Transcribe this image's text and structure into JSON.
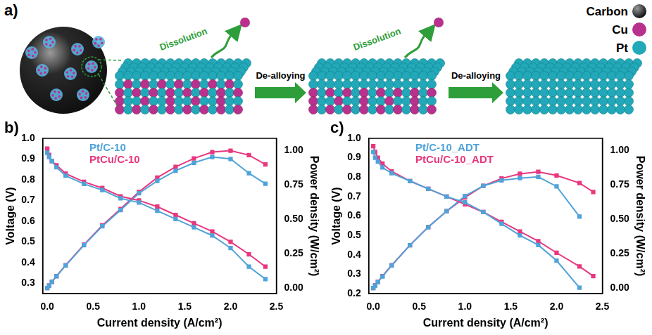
{
  "diagram": {
    "panel_label": "a)",
    "legend": [
      {
        "label": "Carbon",
        "color": "#111111"
      },
      {
        "label": "Cu",
        "color": "#b8318d"
      },
      {
        "label": "Pt",
        "color": "#22a8b8"
      }
    ],
    "steps": [
      {
        "process": "De-alloying",
        "release": "Dissolution"
      },
      {
        "process": "De-alloying",
        "release": "Dissolution"
      }
    ]
  },
  "chart_data": [
    {
      "type": "line",
      "panel_label": "b)",
      "x_label": "Current density (A/cm²)",
      "y_label": "Voltage (V)",
      "y2_label": "Power density (W/cm²)",
      "x": [
        0,
        0.02,
        0.05,
        0.1,
        0.2,
        0.4,
        0.6,
        0.8,
        1.0,
        1.2,
        1.4,
        1.6,
        1.8,
        2.0,
        2.2,
        2.38
      ],
      "xlim": [
        -0.05,
        2.5
      ],
      "xticks": [
        {
          "value": 0,
          "label": "0.0"
        },
        0.5,
        {
          "value": 1,
          "label": "1.0"
        },
        1.5,
        {
          "value": 2,
          "label": "2.0"
        },
        2.5
      ],
      "ylim": [
        0.25,
        1.0
      ],
      "yticks": [
        0.3,
        0.4,
        0.5,
        0.6,
        0.7,
        0.8,
        0.9,
        {
          "value": 1,
          "label": "1.0"
        }
      ],
      "y2lim": [
        -0.04,
        1.09
      ],
      "y2ticks": [
        {
          "value": 0,
          "label": "0.00"
        },
        {
          "value": 0.25,
          "label": "0.25"
        },
        {
          "value": 0.5,
          "label": "0.50"
        },
        {
          "value": 0.75,
          "label": "0.75"
        },
        {
          "value": 1,
          "label": "1.00"
        }
      ],
      "grid": false,
      "legend": "upper left",
      "series": [
        {
          "name": "Pt/C-10",
          "color": "#4fa3d9",
          "marker": "square",
          "axis": "y",
          "values": [
            0.93,
            0.91,
            0.89,
            0.86,
            0.82,
            0.78,
            0.75,
            0.71,
            0.69,
            0.65,
            0.61,
            0.57,
            0.53,
            0.47,
            0.38,
            0.32
          ]
        },
        {
          "name": "PtCu/C-10",
          "color": "#e8377f",
          "marker": "square",
          "axis": "y",
          "values": [
            0.95,
            0.92,
            0.89,
            0.87,
            0.83,
            0.79,
            0.76,
            0.72,
            0.7,
            0.67,
            0.63,
            0.59,
            0.55,
            0.5,
            0.44,
            0.38
          ]
        },
        {
          "name": "Pt/C-10",
          "color": "#4fa3d9",
          "marker": "square",
          "axis": "y2",
          "values": [
            0,
            0.018,
            0.045,
            0.086,
            0.164,
            0.312,
            0.45,
            0.568,
            0.69,
            0.78,
            0.854,
            0.912,
            0.954,
            0.94,
            0.836,
            0.76
          ]
        },
        {
          "name": "PtCu/C-10",
          "color": "#e8377f",
          "marker": "square",
          "axis": "y2",
          "values": [
            0,
            0.018,
            0.045,
            0.087,
            0.166,
            0.316,
            0.456,
            0.576,
            0.7,
            0.804,
            0.882,
            0.944,
            0.99,
            1.0,
            0.968,
            0.9
          ]
        }
      ]
    },
    {
      "type": "line",
      "panel_label": "c)",
      "x_label": "Current density (A/cm²)",
      "y_label": "Voltage (V)",
      "y2_label": "Power density (W/cm²)",
      "x": [
        0,
        0.02,
        0.05,
        0.1,
        0.2,
        0.4,
        0.6,
        0.8,
        1.0,
        1.2,
        1.4,
        1.6,
        1.8,
        2.0,
        2.25,
        2.4
      ],
      "xlim": [
        -0.05,
        2.5
      ],
      "xticks": [
        {
          "value": 0,
          "label": "0.0"
        },
        0.5,
        {
          "value": 1,
          "label": "1.0"
        },
        1.5,
        {
          "value": 2,
          "label": "2.0"
        },
        2.5
      ],
      "ylim": [
        0.2,
        1.0
      ],
      "yticks": [
        0.2,
        0.3,
        0.4,
        0.5,
        0.6,
        0.7,
        0.8,
        0.9,
        {
          "value": 1,
          "label": "1.0"
        }
      ],
      "y2lim": [
        -0.04,
        1.09
      ],
      "y2ticks": [
        {
          "value": 0,
          "label": "0.00"
        },
        {
          "value": 0.25,
          "label": "0.25"
        },
        {
          "value": 0.5,
          "label": "0.50"
        },
        {
          "value": 0.75,
          "label": "0.75"
        },
        {
          "value": 1,
          "label": "1.00"
        }
      ],
      "grid": false,
      "legend": "upper left",
      "series": [
        {
          "name": "Pt/C-10_ADT",
          "color": "#4fa3d9",
          "marker": "square",
          "axis": "y",
          "values": [
            0.93,
            0.9,
            0.88,
            0.85,
            0.82,
            0.78,
            0.74,
            0.7,
            0.67,
            0.62,
            0.56,
            0.5,
            0.45,
            0.37,
            0.23,
            null
          ]
        },
        {
          "name": "PtCu/C-10_ADT",
          "color": "#e8377f",
          "marker": "square",
          "axis": "y",
          "values": [
            0.96,
            0.93,
            0.9,
            0.87,
            0.83,
            0.78,
            0.74,
            0.7,
            0.66,
            0.62,
            0.57,
            0.52,
            0.47,
            0.41,
            0.34,
            0.29
          ]
        },
        {
          "name": "Pt/C-10_ADT",
          "color": "#4fa3d9",
          "marker": "square",
          "axis": "y2",
          "values": [
            0,
            0.018,
            0.044,
            0.085,
            0.164,
            0.312,
            0.444,
            0.56,
            0.67,
            0.744,
            0.784,
            0.8,
            0.81,
            0.74,
            0.52,
            null
          ]
        },
        {
          "name": "PtCu/C-10_ADT",
          "color": "#e8377f",
          "marker": "square",
          "axis": "y2",
          "values": [
            0,
            0.019,
            0.045,
            0.087,
            0.166,
            0.312,
            0.444,
            0.56,
            0.66,
            0.744,
            0.798,
            0.832,
            0.846,
            0.82,
            0.765,
            0.7
          ]
        }
      ]
    }
  ]
}
